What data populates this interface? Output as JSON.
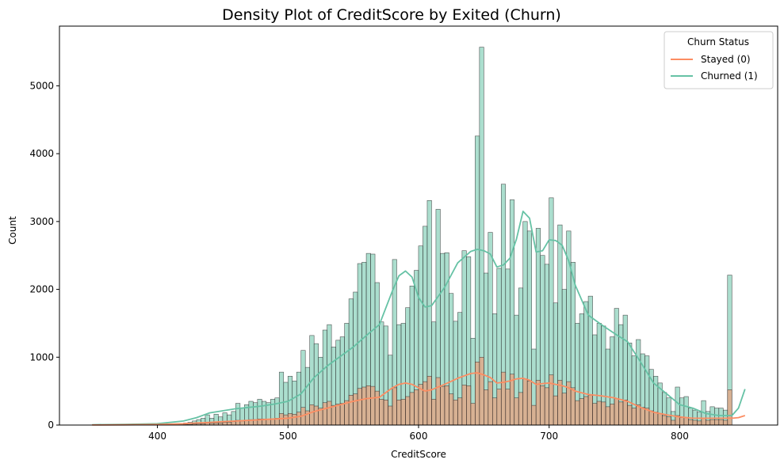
{
  "chart_data": {
    "type": "bar",
    "title": "Density Plot of CreditScore by Exited (Churn)",
    "xlabel": "CreditScore",
    "ylabel": "Count",
    "xlim": [
      325,
      875
    ],
    "ylim": [
      0,
      5880
    ],
    "xticks": [
      400,
      500,
      600,
      700,
      800
    ],
    "yticks": [
      0,
      1000,
      2000,
      3000,
      4000,
      5000
    ],
    "grid": false,
    "legend": {
      "title": "Churn Status",
      "placement": "top-right",
      "entries": [
        {
          "label": "Stayed (0)",
          "color": "#fc8d62"
        },
        {
          "label": "Churned (1)",
          "color": "#66c2a5"
        }
      ]
    },
    "bin_start": 350,
    "bin_width": 3.333,
    "series": [
      {
        "name": "Churned (1)",
        "color": "#66c2a5",
        "values": [
          0,
          0,
          0,
          0,
          0,
          0,
          0,
          0,
          0,
          0,
          0,
          0,
          0,
          0,
          0,
          0,
          0,
          5,
          10,
          15,
          20,
          30,
          40,
          60,
          80,
          100,
          150,
          100,
          160,
          120,
          180,
          150,
          200,
          320,
          250,
          300,
          350,
          330,
          380,
          350,
          330,
          380,
          400,
          780,
          630,
          720,
          650,
          780,
          1100,
          850,
          1320,
          1200,
          1000,
          1400,
          1480,
          1150,
          1250,
          1300,
          1500,
          1860,
          1960,
          2380,
          2400,
          2530,
          2520,
          2100,
          1520,
          1460,
          1030,
          2440,
          1480,
          1500,
          1730,
          2050,
          2280,
          2640,
          2930,
          3310,
          1520,
          3180,
          2530,
          2540,
          1940,
          1530,
          1660,
          2570,
          2480,
          1280,
          4260,
          5570,
          2240,
          2840,
          1640,
          2310,
          3550,
          2300,
          3320,
          1620,
          2020,
          3000,
          2860,
          1120,
          2900,
          2500,
          2370,
          3350,
          1800,
          2950,
          2000,
          2860,
          2400,
          1500,
          1640,
          1820,
          1900,
          1330,
          1500,
          1460,
          1120,
          1300,
          1720,
          1480,
          1620,
          1210,
          1020,
          1260,
          1050,
          1020,
          820,
          720,
          620,
          480,
          400,
          200,
          560,
          400,
          420,
          250,
          220,
          190,
          360,
          200,
          270,
          250,
          250,
          220,
          2210
        ]
      },
      {
        "name": "Stayed (0)",
        "color": "#fc8d62",
        "values": [
          0,
          0,
          0,
          0,
          0,
          0,
          0,
          0,
          0,
          0,
          0,
          0,
          0,
          0,
          0,
          0,
          0,
          2,
          3,
          5,
          6,
          8,
          10,
          14,
          18,
          20,
          30,
          25,
          30,
          30,
          40,
          40,
          50,
          70,
          60,
          70,
          80,
          80,
          90,
          90,
          80,
          90,
          100,
          170,
          150,
          170,
          160,
          190,
          260,
          210,
          300,
          280,
          250,
          330,
          350,
          290,
          310,
          320,
          360,
          440,
          460,
          540,
          560,
          580,
          570,
          500,
          380,
          370,
          280,
          550,
          370,
          380,
          420,
          480,
          520,
          600,
          640,
          720,
          380,
          700,
          570,
          580,
          460,
          370,
          400,
          590,
          580,
          320,
          930,
          1000,
          520,
          640,
          400,
          530,
          780,
          530,
          750,
          400,
          480,
          680,
          650,
          290,
          660,
          580,
          550,
          740,
          430,
          660,
          470,
          640,
          550,
          360,
          390,
          420,
          440,
          320,
          350,
          340,
          270,
          310,
          390,
          340,
          370,
          290,
          250,
          300,
          260,
          250,
          210,
          190,
          170,
          140,
          120,
          70,
          140,
          110,
          110,
          80,
          70,
          60,
          100,
          70,
          80,
          80,
          80,
          70,
          520
        ]
      }
    ],
    "kde": [
      {
        "name": "Churned (1)",
        "color": "#66c2a5",
        "x": [
          350,
          375,
          400,
          420,
          430,
          440,
          450,
          460,
          470,
          480,
          490,
          500,
          510,
          520,
          530,
          540,
          550,
          560,
          570,
          580,
          585,
          590,
          595,
          600,
          605,
          610,
          620,
          630,
          640,
          645,
          650,
          655,
          660,
          665,
          670,
          675,
          680,
          685,
          690,
          695,
          700,
          705,
          710,
          715,
          720,
          730,
          740,
          750,
          760,
          770,
          780,
          790,
          800,
          810,
          820,
          830,
          840,
          845,
          850
        ],
        "y": [
          5,
          10,
          20,
          60,
          110,
          180,
          210,
          240,
          260,
          280,
          310,
          350,
          460,
          700,
          870,
          1010,
          1150,
          1320,
          1480,
          1980,
          2200,
          2270,
          2180,
          1880,
          1740,
          1760,
          2030,
          2390,
          2560,
          2590,
          2570,
          2520,
          2330,
          2360,
          2460,
          2740,
          3150,
          3050,
          2550,
          2570,
          2730,
          2720,
          2650,
          2420,
          2060,
          1620,
          1480,
          1350,
          1230,
          930,
          620,
          460,
          300,
          250,
          170,
          140,
          140,
          250,
          530
        ]
      },
      {
        "name": "Stayed (0)",
        "color": "#fc8d62",
        "x": [
          350,
          375,
          400,
          420,
          430,
          440,
          450,
          460,
          470,
          480,
          490,
          500,
          510,
          520,
          530,
          540,
          550,
          560,
          570,
          580,
          585,
          590,
          595,
          600,
          605,
          610,
          620,
          630,
          640,
          645,
          650,
          655,
          660,
          665,
          670,
          675,
          680,
          685,
          690,
          695,
          700,
          705,
          710,
          715,
          720,
          730,
          740,
          750,
          760,
          770,
          780,
          790,
          800,
          810,
          820,
          830,
          840,
          845,
          850
        ],
        "y": [
          1,
          3,
          8,
          20,
          30,
          40,
          50,
          60,
          70,
          80,
          90,
          100,
          130,
          200,
          250,
          300,
          350,
          390,
          410,
          550,
          600,
          620,
          600,
          550,
          500,
          520,
          600,
          690,
          760,
          770,
          740,
          700,
          620,
          630,
          650,
          680,
          690,
          660,
          600,
          610,
          620,
          600,
          580,
          550,
          500,
          450,
          430,
          400,
          350,
          260,
          190,
          150,
          120,
          100,
          100,
          100,
          100,
          110,
          140
        ]
      }
    ]
  }
}
